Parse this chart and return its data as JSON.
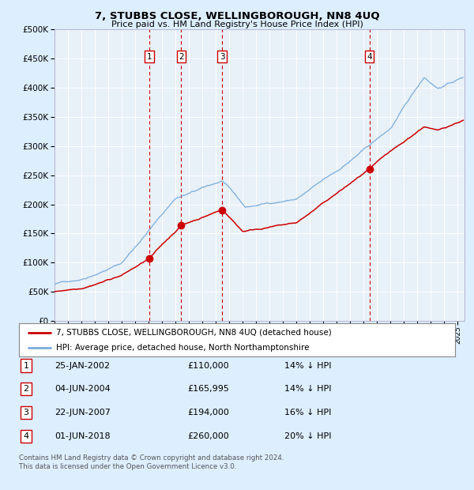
{
  "title": "7, STUBBS CLOSE, WELLINGBOROUGH, NN8 4UQ",
  "subtitle": "Price paid vs. HM Land Registry's House Price Index (HPI)",
  "legend_line1": "7, STUBBS CLOSE, WELLINGBOROUGH, NN8 4UQ (detached house)",
  "legend_line2": "HPI: Average price, detached house, North Northamptonshire",
  "footer1": "Contains HM Land Registry data © Crown copyright and database right 2024.",
  "footer2": "This data is licensed under the Open Government Licence v3.0.",
  "hpi_color": "#7aaddc",
  "price_color": "#cc0000",
  "bg_color": "#ddeeff",
  "plot_bg": "#e8f0f8",
  "grid_color": "#ffffff",
  "vline_color": "#cc0000",
  "ylim": [
    0,
    500000
  ],
  "yticks": [
    0,
    50000,
    100000,
    150000,
    200000,
    250000,
    300000,
    350000,
    400000,
    450000,
    500000
  ],
  "xlim_start": 1995.0,
  "xlim_end": 2025.5,
  "transactions": [
    {
      "num": 1,
      "date": 2002.07,
      "price": 110000,
      "label": "25-JAN-2002",
      "price_str": "£110,000",
      "hpi_str": "14% ↓ HPI"
    },
    {
      "num": 2,
      "date": 2004.43,
      "price": 165995,
      "label": "04-JUN-2004",
      "price_str": "£165,995",
      "hpi_str": "14% ↓ HPI"
    },
    {
      "num": 3,
      "date": 2007.48,
      "price": 194000,
      "label": "22-JUN-2007",
      "price_str": "£194,000",
      "hpi_str": "16% ↓ HPI"
    },
    {
      "num": 4,
      "date": 2018.42,
      "price": 260000,
      "label": "01-JUN-2018",
      "price_str": "£260,000",
      "hpi_str": "20% ↓ HPI"
    }
  ]
}
